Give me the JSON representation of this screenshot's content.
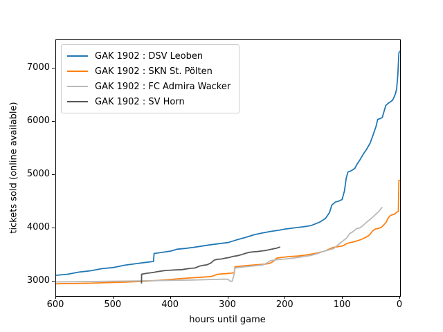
{
  "figure": {
    "background": "#ffffff"
  },
  "legend": {
    "position": "upper-left",
    "items": [
      {
        "label": "GAK 1902 : DSV Leoben",
        "color": "#1f77b4"
      },
      {
        "label": "GAK 1902 : SKN St. Pölten",
        "color": "#ff7f0e"
      },
      {
        "label": "GAK 1902 : FC Admira Wacker",
        "color": "#b9b9b9"
      },
      {
        "label": "GAK 1902 : SV Horn",
        "color": "#565656"
      }
    ]
  },
  "chart_data": {
    "type": "line",
    "title": "",
    "xlabel": "hours until game",
    "ylabel": "tickets sold (online available)",
    "x_axis_reversed": true,
    "xlim": [
      600,
      0
    ],
    "ylim": [
      2720,
      7530
    ],
    "x_ticks": [
      600,
      500,
      400,
      300,
      200,
      100,
      0
    ],
    "y_ticks": [
      3000,
      4000,
      5000,
      6000,
      7000
    ],
    "grid": false,
    "series": [
      {
        "name": "GAK 1902 : DSV Leoben",
        "color": "#1f77b4",
        "points": [
          [
            600,
            3110
          ],
          [
            580,
            3130
          ],
          [
            560,
            3170
          ],
          [
            540,
            3195
          ],
          [
            520,
            3235
          ],
          [
            500,
            3255
          ],
          [
            480,
            3300
          ],
          [
            460,
            3330
          ],
          [
            442,
            3355
          ],
          [
            430,
            3370
          ],
          [
            429,
            3520
          ],
          [
            415,
            3540
          ],
          [
            400,
            3565
          ],
          [
            389,
            3600
          ],
          [
            375,
            3615
          ],
          [
            360,
            3635
          ],
          [
            345,
            3660
          ],
          [
            330,
            3685
          ],
          [
            315,
            3705
          ],
          [
            300,
            3725
          ],
          [
            285,
            3775
          ],
          [
            270,
            3820
          ],
          [
            255,
            3870
          ],
          [
            240,
            3905
          ],
          [
            225,
            3935
          ],
          [
            210,
            3960
          ],
          [
            200,
            3980
          ],
          [
            185,
            4000
          ],
          [
            170,
            4020
          ],
          [
            155,
            4045
          ],
          [
            140,
            4110
          ],
          [
            130,
            4180
          ],
          [
            123,
            4290
          ],
          [
            119,
            4430
          ],
          [
            113,
            4485
          ],
          [
            107,
            4505
          ],
          [
            101,
            4535
          ],
          [
            97,
            4700
          ],
          [
            94,
            4930
          ],
          [
            91,
            5050
          ],
          [
            85,
            5075
          ],
          [
            79,
            5120
          ],
          [
            75,
            5200
          ],
          [
            70,
            5280
          ],
          [
            64,
            5390
          ],
          [
            58,
            5485
          ],
          [
            52,
            5600
          ],
          [
            46,
            5780
          ],
          [
            42,
            5905
          ],
          [
            39,
            6040
          ],
          [
            35,
            6055
          ],
          [
            31,
            6075
          ],
          [
            27,
            6225
          ],
          [
            25,
            6300
          ],
          [
            21,
            6340
          ],
          [
            17,
            6370
          ],
          [
            13,
            6400
          ],
          [
            10,
            6470
          ],
          [
            8,
            6525
          ],
          [
            6,
            6615
          ],
          [
            4,
            6870
          ],
          [
            2,
            7290
          ],
          [
            0,
            7330
          ]
        ]
      },
      {
        "name": "GAK 1902 : SKN St. Pölten",
        "color": "#ff7f0e",
        "points": [
          [
            600,
            2950
          ],
          [
            570,
            2955
          ],
          [
            540,
            2962
          ],
          [
            510,
            2972
          ],
          [
            480,
            2982
          ],
          [
            450,
            2995
          ],
          [
            420,
            3015
          ],
          [
            400,
            3032
          ],
          [
            380,
            3050
          ],
          [
            360,
            3065
          ],
          [
            345,
            3075
          ],
          [
            330,
            3085
          ],
          [
            318,
            3130
          ],
          [
            305,
            3140
          ],
          [
            294,
            3150
          ],
          [
            289,
            3158
          ],
          [
            288,
            3268
          ],
          [
            278,
            3282
          ],
          [
            263,
            3297
          ],
          [
            248,
            3310
          ],
          [
            235,
            3320
          ],
          [
            228,
            3332
          ],
          [
            222,
            3365
          ],
          [
            215,
            3432
          ],
          [
            205,
            3448
          ],
          [
            192,
            3462
          ],
          [
            178,
            3472
          ],
          [
            164,
            3492
          ],
          [
            150,
            3517
          ],
          [
            140,
            3542
          ],
          [
            131,
            3565
          ],
          [
            124,
            3602
          ],
          [
            117,
            3632
          ],
          [
            109,
            3647
          ],
          [
            100,
            3662
          ],
          [
            92,
            3712
          ],
          [
            84,
            3732
          ],
          [
            75,
            3757
          ],
          [
            68,
            3782
          ],
          [
            60,
            3822
          ],
          [
            54,
            3862
          ],
          [
            48,
            3942
          ],
          [
            44,
            3977
          ],
          [
            38,
            3992
          ],
          [
            33,
            4007
          ],
          [
            28,
            4062
          ],
          [
            24,
            4112
          ],
          [
            21,
            4182
          ],
          [
            17,
            4232
          ],
          [
            13,
            4252
          ],
          [
            9,
            4262
          ],
          [
            6,
            4297
          ],
          [
            3,
            4307
          ],
          [
            2.5,
            4610
          ],
          [
            2,
            4892
          ],
          [
            0,
            4897
          ]
        ]
      },
      {
        "name": "GAK 1902 : FC Admira Wacker",
        "color": "#b9b9b9",
        "points": [
          [
            600,
            2985
          ],
          [
            560,
            2990
          ],
          [
            520,
            2996
          ],
          [
            480,
            3001
          ],
          [
            450,
            3006
          ],
          [
            420,
            3011
          ],
          [
            390,
            3016
          ],
          [
            360,
            3021
          ],
          [
            330,
            3031
          ],
          [
            312,
            3036
          ],
          [
            300,
            3036
          ],
          [
            297,
            3001
          ],
          [
            293,
            2996
          ],
          [
            290,
            3105
          ],
          [
            288,
            3242
          ],
          [
            281,
            3257
          ],
          [
            268,
            3272
          ],
          [
            254,
            3287
          ],
          [
            240,
            3302
          ],
          [
            232,
            3342
          ],
          [
            226,
            3387
          ],
          [
            214,
            3402
          ],
          [
            200,
            3417
          ],
          [
            186,
            3432
          ],
          [
            171,
            3457
          ],
          [
            156,
            3482
          ],
          [
            146,
            3512
          ],
          [
            136,
            3552
          ],
          [
            126,
            3582
          ],
          [
            116,
            3612
          ],
          [
            106,
            3702
          ],
          [
            99,
            3762
          ],
          [
            93,
            3812
          ],
          [
            88,
            3892
          ],
          [
            82,
            3932
          ],
          [
            76,
            3987
          ],
          [
            70,
            4002
          ],
          [
            64,
            4052
          ],
          [
            58,
            4112
          ],
          [
            52,
            4162
          ],
          [
            46,
            4222
          ],
          [
            41,
            4272
          ],
          [
            37,
            4312
          ],
          [
            34,
            4352
          ],
          [
            32,
            4377
          ],
          [
            31,
            4392
          ]
        ]
      },
      {
        "name": "GAK 1902 : SV Horn",
        "color": "#565656",
        "points": [
          [
            451,
            2955
          ],
          [
            450.8,
            3130
          ],
          [
            448,
            3136
          ],
          [
            440,
            3150
          ],
          [
            432,
            3161
          ],
          [
            424,
            3176
          ],
          [
            416,
            3191
          ],
          [
            408,
            3201
          ],
          [
            400,
            3206
          ],
          [
            390,
            3211
          ],
          [
            380,
            3216
          ],
          [
            372,
            3231
          ],
          [
            365,
            3241
          ],
          [
            358,
            3246
          ],
          [
            350,
            3281
          ],
          [
            344,
            3296
          ],
          [
            337,
            3306
          ],
          [
            330,
            3341
          ],
          [
            324,
            3396
          ],
          [
            318,
            3411
          ],
          [
            312,
            3416
          ],
          [
            305,
            3431
          ],
          [
            298,
            3446
          ],
          [
            291,
            3466
          ],
          [
            284,
            3476
          ],
          [
            277,
            3496
          ],
          [
            270,
            3521
          ],
          [
            263,
            3541
          ],
          [
            256,
            3551
          ],
          [
            249,
            3556
          ],
          [
            242,
            3566
          ],
          [
            235,
            3576
          ],
          [
            228,
            3591
          ],
          [
            221,
            3606
          ],
          [
            215,
            3621
          ],
          [
            211,
            3636
          ],
          [
            209,
            3641
          ]
        ]
      }
    ]
  }
}
